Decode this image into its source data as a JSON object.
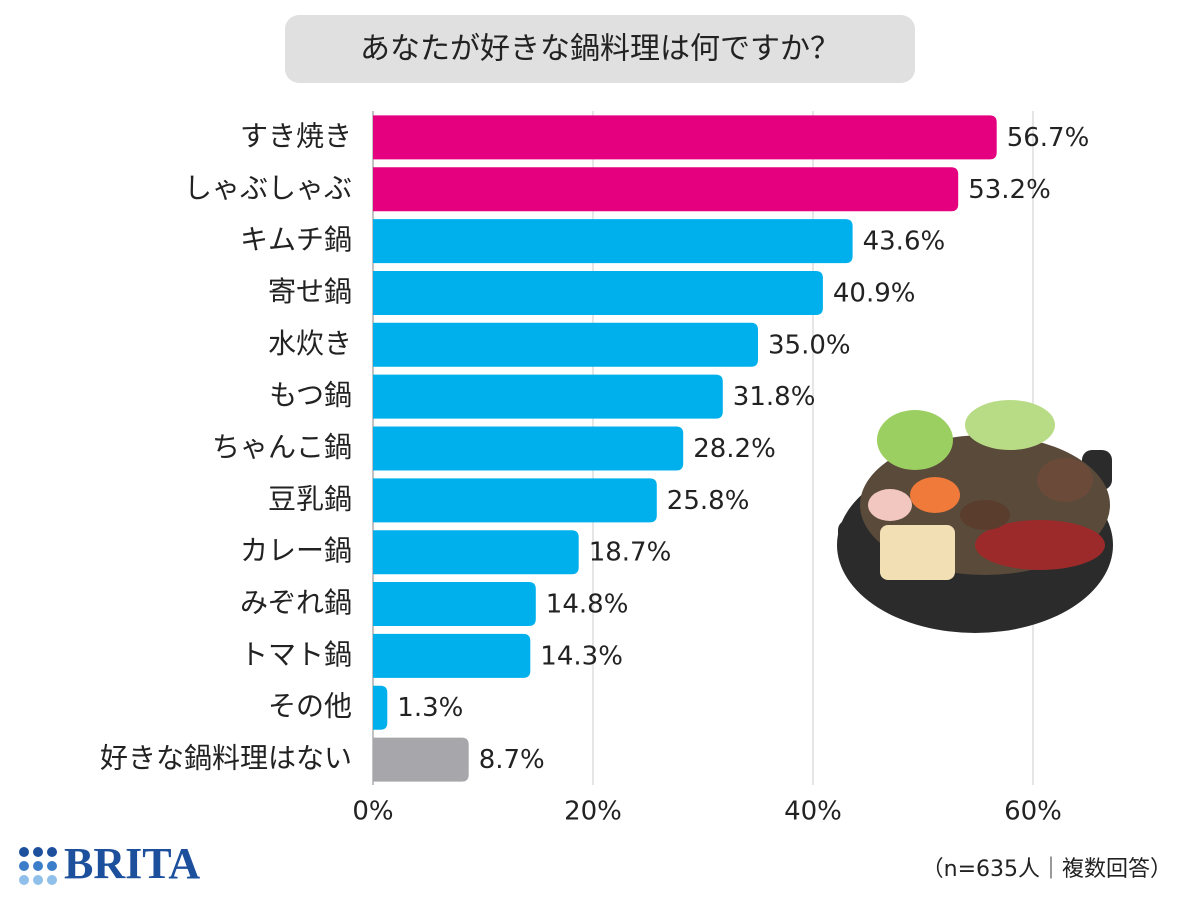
{
  "chart_data": {
    "type": "bar",
    "orientation": "horizontal",
    "title": "あなたが好きな鍋料理は何ですか？",
    "categories": [
      "すき焼き",
      "しゃぶしゃぶ",
      "キムチ鍋",
      "寄せ鍋",
      "水炊き",
      "もつ鍋",
      "ちゃんこ鍋",
      "豆乳鍋",
      "カレー鍋",
      "みぞれ鍋",
      "トマト鍋",
      "その他",
      "好きな鍋料理はない"
    ],
    "values": [
      56.7,
      53.2,
      43.6,
      40.9,
      35.0,
      31.8,
      28.2,
      25.8,
      18.7,
      14.8,
      14.3,
      1.3,
      8.7
    ],
    "value_labels": [
      "56.7%",
      "53.2%",
      "43.6%",
      "40.9%",
      "35.0%",
      "31.8%",
      "28.2%",
      "25.8%",
      "18.7%",
      "14.8%",
      "14.3%",
      "1.3%",
      "8.7%"
    ],
    "colors": [
      "#e4007f",
      "#e4007f",
      "#00b0ec",
      "#00b0ec",
      "#00b0ec",
      "#00b0ec",
      "#00b0ec",
      "#00b0ec",
      "#00b0ec",
      "#00b0ec",
      "#00b0ec",
      "#00b0ec",
      "#a7a6ab"
    ],
    "xlim": [
      0,
      60
    ],
    "xticks": [
      {
        "value": 0,
        "label": "0%"
      },
      {
        "value": 20,
        "label": "20%"
      },
      {
        "value": 40,
        "label": "40%"
      },
      {
        "value": 60,
        "label": "60%"
      }
    ],
    "grid": true,
    "note": "（n=635人｜複数回答）",
    "brand": "BRITA"
  }
}
